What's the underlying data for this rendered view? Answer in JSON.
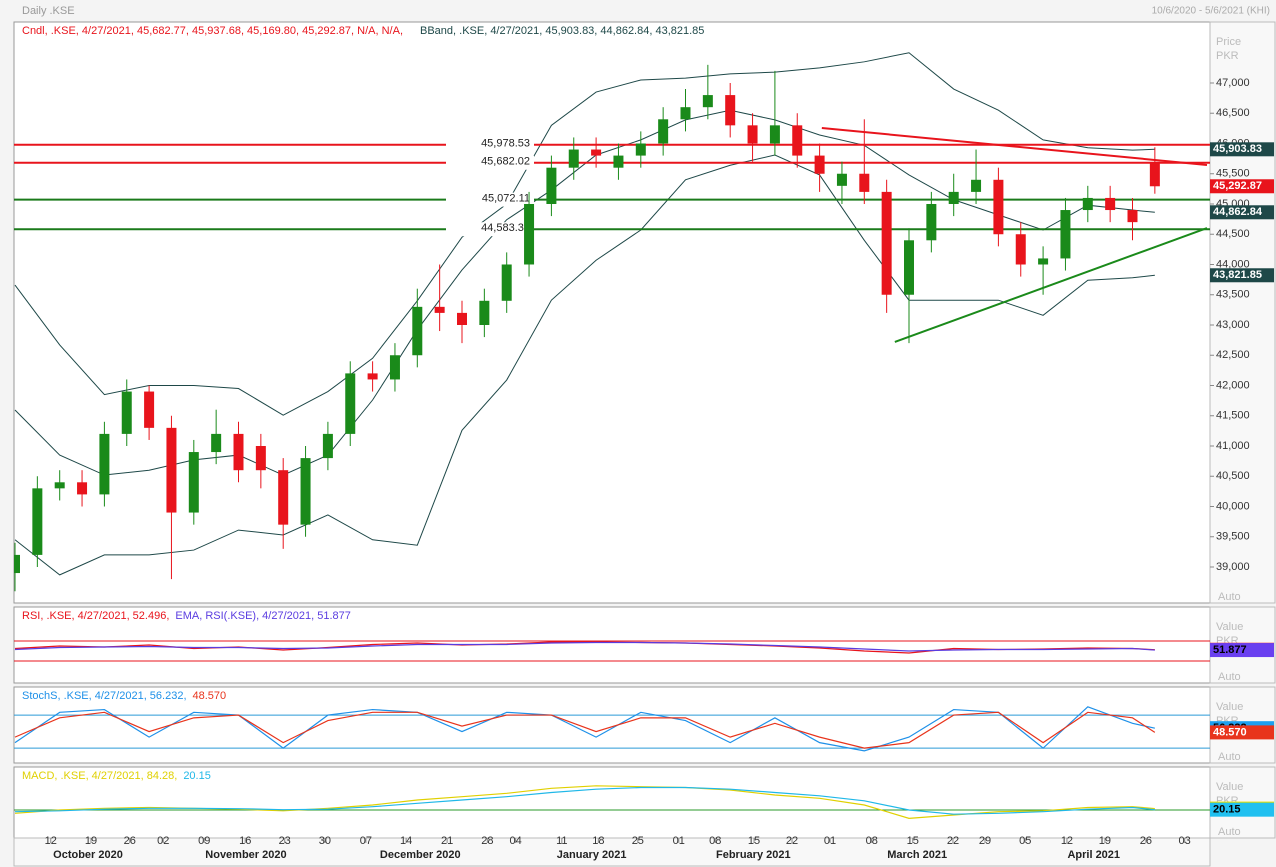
{
  "header": {
    "title": "Daily .KSE",
    "range": "10/6/2020 - 5/6/2021 (KHI)"
  },
  "chart_data": [
    {
      "type": "candlestick",
      "legend": [
        {
          "text": "Cndl, .KSE, 4/27/2021, 45,682.77, 45,937.68, 45,169.80, 45,292.87, N/A, N/A,",
          "color": "#e8141c"
        },
        {
          "text": "BBand, .KSE, 4/27/2021, 45,903.83, 44,862.84, 43,821.85",
          "color": "#1e4848"
        }
      ],
      "axis_label": "Price",
      "axis_unit": "PKR",
      "scale_mode": "Auto",
      "xlim": [
        0,
        160
      ],
      "ylim": [
        38405,
        48008
      ],
      "yticks": [
        {
          "value": 39000,
          "label": "39,000"
        },
        {
          "value": 39500,
          "label": "39,500"
        },
        {
          "value": 40000,
          "label": "40,000"
        },
        {
          "value": 40500,
          "label": "40,500"
        },
        {
          "value": 41000,
          "label": "41,000"
        },
        {
          "value": 41500,
          "label": "41,500"
        },
        {
          "value": 42000,
          "label": "42,000"
        },
        {
          "value": 42500,
          "label": "42,500"
        },
        {
          "value": 43000,
          "label": "43,000"
        },
        {
          "value": 43500,
          "label": "43,500"
        },
        {
          "value": 44000,
          "label": "44,000"
        },
        {
          "value": 44500,
          "label": "44,500"
        },
        {
          "value": 45000,
          "label": "45,000"
        },
        {
          "value": 45500,
          "label": "45,500"
        },
        {
          "value": 46000,
          "label": "46,000"
        },
        {
          "value": 46500,
          "label": "46,500"
        },
        {
          "value": 47000,
          "label": "47,000"
        }
      ],
      "up_color": "#1a8a1a",
      "down_color": "#e8141c",
      "x": [
        0,
        3,
        6,
        9,
        12,
        15,
        18,
        21,
        24,
        27,
        30,
        33,
        36,
        39,
        42,
        45,
        48,
        51,
        54,
        57,
        60,
        63,
        66,
        69,
        72,
        75,
        78,
        81,
        84,
        87,
        90,
        93,
        96,
        99,
        102,
        105,
        108,
        111,
        114,
        117,
        120,
        123,
        126,
        129,
        132,
        135,
        138,
        141,
        144,
        147,
        150,
        153
      ],
      "open": [
        38900,
        39200,
        40300,
        40400,
        40200,
        41200,
        41900,
        41300,
        39900,
        40900,
        41200,
        41000,
        40600,
        39700,
        40800,
        41200,
        42200,
        42100,
        42500,
        43300,
        43200,
        43000,
        43400,
        44000,
        45000,
        45600,
        45900,
        45600,
        45800,
        46000,
        46400,
        46600,
        46800,
        46300,
        46000,
        46300,
        45800,
        45300,
        45500,
        45200,
        43500,
        44400,
        45000,
        45200,
        45400,
        44500,
        44000,
        44100,
        44900,
        45100,
        44900,
        45682.77
      ],
      "high": [
        39400,
        40500,
        40600,
        40600,
        41400,
        42100,
        42000,
        41500,
        41100,
        41600,
        41400,
        41200,
        40800,
        41000,
        41400,
        42400,
        42400,
        42700,
        43600,
        44000,
        43400,
        43600,
        44200,
        45200,
        45800,
        46100,
        46100,
        46000,
        46200,
        46600,
        46900,
        47300,
        47000,
        46500,
        47200,
        46500,
        46000,
        45700,
        46400,
        45400,
        44600,
        45200,
        45500,
        45900,
        45600,
        44700,
        44300,
        45100,
        45300,
        45300,
        45100,
        45937.68
      ],
      "low": [
        38600,
        39000,
        40100,
        40000,
        40000,
        41000,
        41100,
        38800,
        39700,
        40700,
        40400,
        40300,
        39300,
        39500,
        40600,
        41000,
        41900,
        41900,
        42300,
        42900,
        42700,
        42800,
        43200,
        43800,
        44800,
        45400,
        45600,
        45400,
        45600,
        45800,
        46200,
        46400,
        46100,
        45700,
        45800,
        45600,
        45200,
        45000,
        45000,
        43200,
        42700,
        44200,
        44800,
        45000,
        44300,
        43800,
        43500,
        43900,
        44700,
        44700,
        44400,
        45169.8
      ],
      "close": [
        39200,
        40300,
        40400,
        40200,
        41200,
        41900,
        41300,
        39900,
        40900,
        41200,
        40600,
        40600,
        39700,
        40800,
        41200,
        42200,
        42100,
        42500,
        43300,
        43200,
        43000,
        43400,
        44000,
        45000,
        45600,
        45900,
        45800,
        45800,
        46000,
        46400,
        46600,
        46800,
        46300,
        46000,
        46300,
        45800,
        45500,
        45500,
        45200,
        43500,
        44400,
        45000,
        45200,
        45400,
        44500,
        44000,
        44100,
        44900,
        45100,
        44900,
        44700,
        45292.87
      ],
      "bands": {
        "color": "#1e4848",
        "x": [
          0,
          6,
          12,
          18,
          24,
          30,
          36,
          42,
          48,
          54,
          60,
          66,
          72,
          78,
          84,
          90,
          96,
          102,
          108,
          114,
          120,
          126,
          132,
          138,
          144,
          150,
          153
        ],
        "upper": [
          43660,
          42670,
          41850,
          42000,
          42000,
          41950,
          41510,
          41900,
          42450,
          43400,
          44450,
          45000,
          46300,
          46850,
          47050,
          47080,
          47150,
          47180,
          47250,
          47350,
          47500,
          46900,
          46550,
          46060,
          45930,
          45890,
          45903.83
        ],
        "middle": [
          41595,
          40850,
          40520,
          40600,
          40770,
          40850,
          40520,
          40850,
          41760,
          42920,
          43910,
          44740,
          45230,
          45810,
          46060,
          46390,
          46550,
          46390,
          46140,
          45970,
          45480,
          45070,
          44820,
          44570,
          44980,
          44900,
          44862.84
        ],
        "lower": [
          39450,
          38870,
          39200,
          39200,
          39280,
          39610,
          39530,
          39860,
          39450,
          39360,
          41260,
          42090,
          43410,
          44070,
          44570,
          45400,
          45640,
          45810,
          45480,
          44400,
          43410,
          43410,
          43410,
          43160,
          43740,
          43780,
          43821.85
        ]
      },
      "hlines": [
        {
          "value": 45978.53,
          "label": "45,978.53",
          "color": "#e8141c"
        },
        {
          "value": 45682.02,
          "label": "45,682.02",
          "color": "#e8141c"
        },
        {
          "value": 45072.11,
          "label": "45,072.11",
          "color": "#1a7a1a"
        },
        {
          "value": 44583.32,
          "label": "44,583.32",
          "color": "#1a7a1a"
        }
      ],
      "trendlines": [
        {
          "x": [
            108.3,
            160
          ],
          "y": [
            46256,
            45645
          ],
          "color": "#e8141c"
        },
        {
          "x": [
            118.1,
            160
          ],
          "y": [
            42719,
            44603
          ],
          "color": "#1a8a1a"
        }
      ],
      "markers": [
        {
          "value": 45903.83,
          "label": "45,903.83",
          "color": "#1e4848",
          "text_color": "#ffffff"
        },
        {
          "value": 45292.87,
          "label": "45,292.87",
          "color": "#e8141c",
          "text_color": "#ffffff"
        },
        {
          "value": 44862.84,
          "label": "44,862.84",
          "color": "#1e4848",
          "text_color": "#ffffff"
        },
        {
          "value": 43821.85,
          "label": "43,821.85",
          "color": "#1e4848",
          "text_color": "#ffffff"
        }
      ]
    },
    {
      "type": "line",
      "axis_label": "Value",
      "axis_unit": "PKR",
      "scale_mode": "Auto",
      "xlim": [
        0,
        160
      ],
      "ylim": [
        -14,
        138
      ],
      "levels": [
        30,
        70
      ],
      "level_color": "#e8141c",
      "x": [
        0,
        6,
        12,
        18,
        24,
        30,
        36,
        42,
        48,
        54,
        60,
        66,
        72,
        78,
        84,
        90,
        96,
        102,
        108,
        114,
        120,
        126,
        132,
        138,
        144,
        150,
        153
      ],
      "series": [
        {
          "name": "RSI, .KSE, 4/27/2021, 52.496,",
          "color": "#e8141c",
          "values": [
            55,
            60,
            58,
            62,
            55,
            58,
            52,
            57,
            63,
            66,
            62,
            64,
            68,
            68,
            67,
            66,
            63,
            60,
            56,
            50,
            46,
            55,
            53,
            54,
            56,
            55,
            52.496
          ]
        },
        {
          "name": "EMA, RSI(.KSE), 4/27/2021, 51.877",
          "color": "#5a3ce0",
          "values": [
            53,
            57,
            58,
            59,
            57,
            57,
            55,
            56,
            60,
            63,
            63,
            63,
            66,
            67,
            67,
            66,
            64,
            61,
            58,
            54,
            50,
            52,
            53,
            53,
            54,
            55,
            51.877
          ]
        }
      ],
      "markers": [
        {
          "value": 52.496,
          "color": "#e8141c",
          "text_color": "#000000"
        },
        {
          "value": 51.877,
          "color": "#6a40f0",
          "text_color": "#000000"
        }
      ]
    },
    {
      "type": "line",
      "axis_label": "Value",
      "axis_unit": "PKR",
      "scale_mode": "Auto",
      "xlim": [
        0,
        160
      ],
      "ylim": [
        -7,
        131
      ],
      "levels": [
        20,
        80
      ],
      "level_color": "#2a9ad8",
      "x": [
        0,
        6,
        12,
        18,
        24,
        30,
        36,
        42,
        48,
        54,
        60,
        66,
        72,
        78,
        84,
        90,
        96,
        102,
        108,
        114,
        120,
        126,
        132,
        138,
        144,
        150,
        153
      ],
      "series": [
        {
          "name": "StochS, .KSE, 4/27/2021, 56.232,",
          "color": "#1e90e8",
          "values": [
            30,
            85,
            90,
            40,
            85,
            80,
            20,
            80,
            90,
            85,
            50,
            85,
            80,
            40,
            85,
            70,
            30,
            75,
            30,
            15,
            40,
            90,
            85,
            20,
            95,
            65,
            56.232
          ]
        },
        {
          "name": "48.570",
          "color": "#e8341c",
          "values": [
            40,
            75,
            85,
            50,
            75,
            80,
            30,
            70,
            85,
            85,
            60,
            80,
            80,
            50,
            75,
            75,
            40,
            65,
            40,
            20,
            30,
            80,
            85,
            30,
            85,
            75,
            48.57
          ]
        }
      ],
      "markers": [
        {
          "value": 56.232,
          "color": "#1ca0f0",
          "text_color": "#000000"
        },
        {
          "value": 48.57,
          "label": "48.570",
          "color": "#e8341c",
          "text_color": "#ffffff"
        }
      ]
    },
    {
      "type": "line",
      "axis_label": "Value",
      "axis_unit": "PKR",
      "scale_mode": "Auto",
      "xlim": [
        0,
        160
      ],
      "ylim": [
        -1680,
        2580
      ],
      "levels": [
        0
      ],
      "level_color": "#2a9a2a",
      "x": [
        0,
        6,
        12,
        18,
        24,
        30,
        36,
        42,
        48,
        54,
        60,
        66,
        72,
        78,
        84,
        90,
        96,
        102,
        108,
        114,
        120,
        126,
        132,
        138,
        144,
        150,
        153
      ],
      "series": [
        {
          "name": "MACD, .KSE, 4/27/2021, 84.28,",
          "color": "#e0d000",
          "values": [
            -200,
            0,
            100,
            150,
            100,
            50,
            -50,
            100,
            300,
            600,
            800,
            1000,
            1300,
            1450,
            1400,
            1350,
            1200,
            900,
            700,
            300,
            -500,
            -300,
            -100,
            -50,
            150,
            200,
            84.28
          ]
        },
        {
          "name": "20.15",
          "color": "#20b8e8",
          "values": [
            -100,
            -50,
            50,
            100,
            100,
            80,
            20,
            50,
            200,
            400,
            600,
            800,
            1050,
            1250,
            1350,
            1350,
            1250,
            1050,
            850,
            550,
            0,
            -250,
            -200,
            -100,
            50,
            150,
            20.15
          ]
        }
      ],
      "markers": [
        {
          "value": 84.28,
          "color": "#e8e000",
          "text_color": "#000000"
        },
        {
          "value": 20.15,
          "color": "#20c0f0",
          "text_color": "#000000"
        }
      ],
      "xticks": [
        {
          "value": 4.8,
          "label": "12"
        },
        {
          "value": 10.2,
          "label": "19"
        },
        {
          "value": 15.4,
          "label": "26"
        },
        {
          "value": 19.9,
          "label": "02"
        },
        {
          "value": 25.4,
          "label": "09"
        },
        {
          "value": 30.9,
          "label": "16"
        },
        {
          "value": 36.2,
          "label": "23"
        },
        {
          "value": 41.6,
          "label": "30"
        },
        {
          "value": 47.1,
          "label": "07"
        },
        {
          "value": 52.5,
          "label": "14"
        },
        {
          "value": 58,
          "label": "21"
        },
        {
          "value": 63.4,
          "label": "28"
        },
        {
          "value": 67.2,
          "label": "04"
        },
        {
          "value": 73.4,
          "label": "11"
        },
        {
          "value": 78.3,
          "label": "18"
        },
        {
          "value": 83.6,
          "label": "25"
        },
        {
          "value": 89.1,
          "label": "01"
        },
        {
          "value": 94,
          "label": "08"
        },
        {
          "value": 99.2,
          "label": "15"
        },
        {
          "value": 104.3,
          "label": "22"
        },
        {
          "value": 109.4,
          "label": "01"
        },
        {
          "value": 115,
          "label": "08"
        },
        {
          "value": 120.5,
          "label": "15"
        },
        {
          "value": 125.9,
          "label": "22"
        },
        {
          "value": 130.2,
          "label": "29"
        },
        {
          "value": 135.6,
          "label": "05"
        },
        {
          "value": 141.2,
          "label": "12"
        },
        {
          "value": 146.3,
          "label": "19"
        },
        {
          "value": 151.8,
          "label": "26"
        },
        {
          "value": 157,
          "label": "03"
        }
      ],
      "months": [
        {
          "value": 9.8,
          "label": "October 2020"
        },
        {
          "value": 31,
          "label": "November 2020"
        },
        {
          "value": 54.4,
          "label": "December 2020"
        },
        {
          "value": 77.4,
          "label": "January 2021"
        },
        {
          "value": 99.1,
          "label": "February 2021"
        },
        {
          "value": 121.1,
          "label": "March 2021"
        },
        {
          "value": 144.8,
          "label": "April 2021"
        }
      ]
    }
  ]
}
